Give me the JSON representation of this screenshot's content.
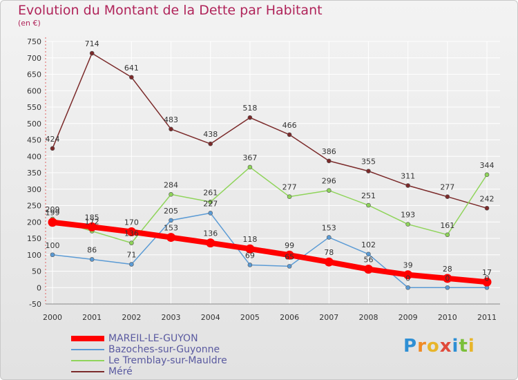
{
  "header": {
    "title": "Evolution du Montant de la Dette par Habitant",
    "unit": "(en €)"
  },
  "brand": {
    "text": "Proxiti"
  },
  "colors": {
    "title": "#b0245a",
    "legend_text": "#5a5aa0",
    "axis_text": "#333333",
    "grid": "#ffffff"
  },
  "chart_data": {
    "type": "line",
    "title": "Evolution du Montant de la Dette par Habitant",
    "subtitle": "(en €)",
    "xlabel": "",
    "ylabel": "",
    "x": [
      "2000",
      "2001",
      "2002",
      "2003",
      "2004",
      "2005",
      "2006",
      "2007",
      "2008",
      "2009",
      "2010",
      "2011"
    ],
    "ylim": [
      -50,
      750
    ],
    "yticks": [
      -50,
      0,
      50,
      100,
      150,
      200,
      250,
      300,
      350,
      400,
      450,
      500,
      550,
      600,
      650,
      700,
      750
    ],
    "grid": true,
    "legend_position": "bottom-left",
    "series": [
      {
        "name": "MAREIL-LE-GUYON",
        "color": "#ff0000",
        "values": [
          199,
          185,
          170,
          153,
          136,
          118,
          99,
          78,
          56,
          39,
          28,
          17
        ]
      },
      {
        "name": "Bazoches-sur-Guyonne",
        "color": "#5b9bd5",
        "values": [
          100,
          86,
          71,
          205,
          227,
          69,
          65,
          153,
          102,
          0,
          0,
          0
        ]
      },
      {
        "name": "Le Tremblay-sur-Mauldre",
        "color": "#8fd45a",
        "values": [
          209,
          172,
          136,
          284,
          261,
          367,
          277,
          296,
          251,
          193,
          161,
          344
        ]
      },
      {
        "name": "Méré",
        "color": "#7b2a2a",
        "values": [
          424,
          714,
          641,
          483,
          438,
          518,
          466,
          386,
          355,
          311,
          277,
          242
        ]
      }
    ]
  }
}
